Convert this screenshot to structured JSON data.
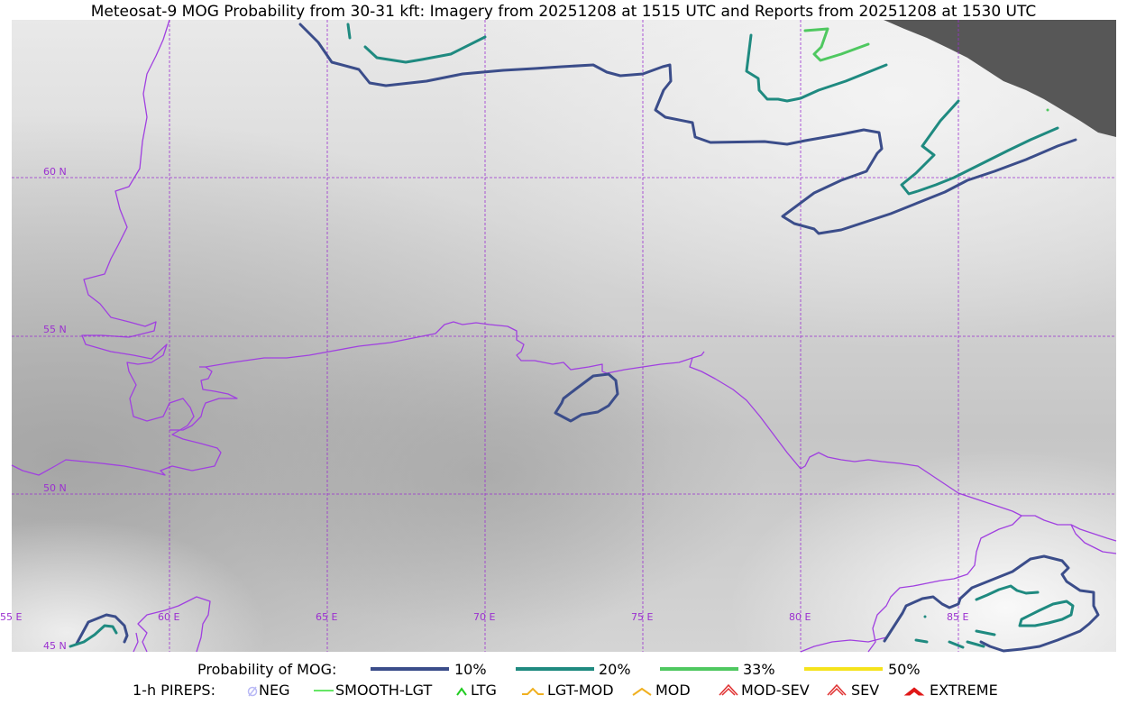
{
  "title": "Meteosat-9 MOG Probability from 30-31 kft: Imagery from 20251208 at 1515 UTC and Reports from 20251208 at 1530 UTC",
  "map": {
    "lat_labels": [
      "60 N",
      "55 N",
      "50 N",
      "45 N"
    ],
    "lon_labels": [
      "55 E",
      "60 E",
      "65 E",
      "70 E",
      "75 E",
      "80 E",
      "85 E"
    ],
    "colors": {
      "grid": "#9b30d0",
      "borders": "#a040e0",
      "missing_data": "#575757"
    }
  },
  "legend": {
    "probability": {
      "label": "Probability of MOG:",
      "items": [
        {
          "label": "10%",
          "color": "#3b4d8a"
        },
        {
          "label": "20%",
          "color": "#1f8a80"
        },
        {
          "label": "33%",
          "color": "#4fc860"
        },
        {
          "label": "50%",
          "color": "#f5e31c"
        }
      ]
    },
    "pireps": {
      "label": "1-h PIREPS:",
      "items": [
        {
          "label": "NEG",
          "color": "#b9b9f5",
          "icon": "neg-icon"
        },
        {
          "label": "SMOOTH-LGT",
          "color": "#33dd33",
          "icon": "line-icon"
        },
        {
          "label": "LTG",
          "color": "#22cc22",
          "icon": "caret-icon"
        },
        {
          "label": "LGT-MOD",
          "color": "#f0b020",
          "icon": "hat-icon"
        },
        {
          "label": "MOD",
          "color": "#f0b020",
          "icon": "caret-icon"
        },
        {
          "label": "MOD-SEV",
          "color": "#e03030",
          "icon": "double-caret-icon"
        },
        {
          "label": "SEV",
          "color": "#e03030",
          "icon": "double-caret-icon"
        },
        {
          "label": "EXTREME",
          "color": "#e01818",
          "icon": "filled-caret-icon"
        }
      ]
    }
  }
}
